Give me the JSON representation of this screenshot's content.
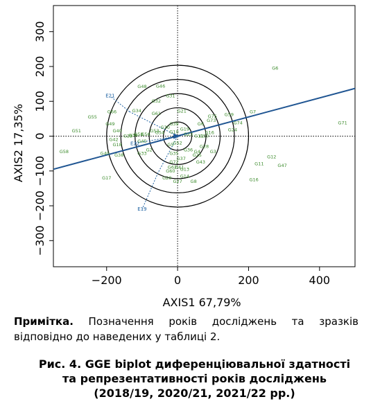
{
  "chart_data": {
    "type": "scatter",
    "subtype": "GGE biplot",
    "xlabel": "AXIS1 67,79%",
    "ylabel": "AXIS2 17,35%",
    "xlim": [
      -350,
      500
    ],
    "ylim": [
      -375,
      375
    ],
    "x_ticks": [
      -200,
      0,
      200,
      400
    ],
    "x_tick_labels": [
      "−200",
      "0",
      "200",
      "400"
    ],
    "y_ticks": [
      -300,
      -200,
      -100,
      0,
      100,
      200,
      300
    ],
    "y_tick_labels": [
      "−300",
      "−200",
      "−100",
      "0",
      "100",
      "200",
      "300"
    ],
    "grid": false,
    "genotype_color": "#3a8a2a",
    "environment_color": "#1a5fa0",
    "axis_line_color": "#1f5592",
    "genotypes": [
      {
        "label": "G6",
        "x": 275,
        "y": 195
      },
      {
        "label": "G48",
        "x": -100,
        "y": 142
      },
      {
        "label": "G46",
        "x": -48,
        "y": 143
      },
      {
        "label": "G31",
        "x": -20,
        "y": 115
      },
      {
        "label": "G32",
        "x": -60,
        "y": 100
      },
      {
        "label": "G34",
        "x": -115,
        "y": 73
      },
      {
        "label": "G66",
        "x": -185,
        "y": 70
      },
      {
        "label": "G55",
        "x": -240,
        "y": 55
      },
      {
        "label": "G61",
        "x": -60,
        "y": 65
      },
      {
        "label": "G21",
        "x": 12,
        "y": 72
      },
      {
        "label": "G75",
        "x": 98,
        "y": 57
      },
      {
        "label": "G59",
        "x": 145,
        "y": 62
      },
      {
        "label": "G7",
        "x": 212,
        "y": 70
      },
      {
        "label": "G71",
        "x": 465,
        "y": 38
      },
      {
        "label": "G74",
        "x": 170,
        "y": 38
      },
      {
        "label": "G73",
        "x": 95,
        "y": 45
      },
      {
        "label": "G6",
        "x": 65,
        "y": 35
      },
      {
        "label": "G24",
        "x": 155,
        "y": 18
      },
      {
        "label": "G16",
        "x": 90,
        "y": 10
      },
      {
        "label": "G49",
        "x": -190,
        "y": 35
      },
      {
        "label": "G40",
        "x": -170,
        "y": 15
      },
      {
        "label": "G51",
        "x": -285,
        "y": 15
      },
      {
        "label": "G39",
        "x": -10,
        "y": 35
      },
      {
        "label": "G30",
        "x": -35,
        "y": 25
      },
      {
        "label": "G54",
        "x": -50,
        "y": 10
      },
      {
        "label": "G10",
        "x": -10,
        "y": 12
      },
      {
        "label": "G58",
        "x": -110,
        "y": 5
      },
      {
        "label": "G36",
        "x": -125,
        "y": 2
      },
      {
        "label": "G29",
        "x": -140,
        "y": 0
      },
      {
        "label": "G56",
        "x": -90,
        "y": 5
      },
      {
        "label": "G53",
        "x": -65,
        "y": 15
      },
      {
        "label": "G19",
        "x": 20,
        "y": 20
      },
      {
        "label": "G23",
        "x": 30,
        "y": 5
      },
      {
        "label": "G11",
        "x": 60,
        "y": 0
      },
      {
        "label": "G50",
        "x": 75,
        "y": 0
      },
      {
        "label": "G45",
        "x": -100,
        "y": -15
      },
      {
        "label": "G18",
        "x": -170,
        "y": -25
      },
      {
        "label": "G42",
        "x": -180,
        "y": -10
      },
      {
        "label": "G58",
        "x": -320,
        "y": -45
      },
      {
        "label": "G40",
        "x": -205,
        "y": -50
      },
      {
        "label": "G38",
        "x": -165,
        "y": -55
      },
      {
        "label": "G2",
        "x": -80,
        "y": -40
      },
      {
        "label": "G5",
        "x": -20,
        "y": -25
      },
      {
        "label": "G52",
        "x": 0,
        "y": -20
      },
      {
        "label": "G33",
        "x": -100,
        "y": -50
      },
      {
        "label": "G35",
        "x": -10,
        "y": -50
      },
      {
        "label": "G37",
        "x": 10,
        "y": -65
      },
      {
        "label": "G72",
        "x": -10,
        "y": -75
      },
      {
        "label": "G36",
        "x": 30,
        "y": -40
      },
      {
        "label": "G4",
        "x": 55,
        "y": -45
      },
      {
        "label": "G28",
        "x": 75,
        "y": -30
      },
      {
        "label": "G3",
        "x": 100,
        "y": -45
      },
      {
        "label": "G25",
        "x": 55,
        "y": -55
      },
      {
        "label": "G43",
        "x": 65,
        "y": -75
      },
      {
        "label": "G62",
        "x": -15,
        "y": -90
      },
      {
        "label": "G41",
        "x": 5,
        "y": -90
      },
      {
        "label": "G60",
        "x": -20,
        "y": -100
      },
      {
        "label": "G13",
        "x": 20,
        "y": -95
      },
      {
        "label": "G14",
        "x": 20,
        "y": -115
      },
      {
        "label": "G20",
        "x": -30,
        "y": -120
      },
      {
        "label": "G27",
        "x": 0,
        "y": -130
      },
      {
        "label": "G8",
        "x": 45,
        "y": -130
      },
      {
        "label": "G17",
        "x": -200,
        "y": -120
      },
      {
        "label": "G12",
        "x": 265,
        "y": -60
      },
      {
        "label": "G11",
        "x": 230,
        "y": -80
      },
      {
        "label": "G47",
        "x": 295,
        "y": -85
      },
      {
        "label": "G16",
        "x": 215,
        "y": -125
      }
    ],
    "environments": [
      {
        "label": "E21",
        "x": -190,
        "y": 115,
        "vector_to": [
          -135,
          70
        ]
      },
      {
        "label": "E19",
        "x": -100,
        "y": -210,
        "vector_to": [
          -55,
          -105
        ]
      },
      {
        "label": "E22",
        "x": -120,
        "y": -22,
        "vector_to": [
          -120,
          -20
        ]
      }
    ],
    "average_environment_axis": {
      "from": [
        -350,
        -95
      ],
      "to": [
        500,
        137
      ]
    },
    "concentric_circle_radii": [
      40,
      80,
      120,
      160,
      200
    ]
  },
  "note": {
    "label": "Примітка.",
    "text": "Позначення років досліджень та зразків відповідно до наведених у таблиці 2."
  },
  "caption": {
    "line1": "Рис. 4. GGE biplot диференціювальної здатності",
    "line2": "та репрезентативності років досліджень",
    "line3": "(2018/19, 2020/21, 2021/22 рр.)"
  }
}
